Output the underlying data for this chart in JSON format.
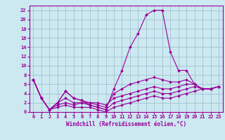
{
  "xlabel": "Windchill (Refroidissement éolien,°C)",
  "bg_color": "#cce8f0",
  "grid_color": "#99bbcc",
  "line_color": "#990099",
  "xlim": [
    -0.5,
    23.5
  ],
  "ylim": [
    0,
    23
  ],
  "xticks": [
    0,
    1,
    2,
    3,
    4,
    5,
    6,
    7,
    8,
    9,
    10,
    11,
    12,
    13,
    14,
    15,
    16,
    17,
    18,
    19,
    20,
    21,
    22,
    23
  ],
  "yticks": [
    0,
    2,
    4,
    6,
    8,
    10,
    12,
    14,
    16,
    18,
    20,
    22
  ],
  "series": [
    [
      7,
      3,
      0.5,
      2,
      4.5,
      3,
      2.5,
      1.5,
      1,
      0.5,
      5,
      9,
      14,
      17,
      21,
      22,
      22,
      13,
      9,
      9,
      6,
      5,
      5,
      5.5
    ],
    [
      7,
      3,
      0.5,
      2,
      4.5,
      3,
      2.5,
      2,
      1.5,
      1,
      4,
      5,
      6,
      6.5,
      7,
      7.5,
      7,
      6.5,
      6.5,
      7,
      6,
      5,
      5,
      5.5
    ],
    [
      7,
      3,
      0.5,
      2,
      3,
      2,
      2,
      2,
      2,
      1.5,
      3,
      3.5,
      4,
      4.5,
      5,
      5.5,
      5,
      5,
      5.5,
      6,
      6,
      5,
      5,
      5.5
    ],
    [
      7,
      3,
      0.5,
      1.5,
      2,
      1.5,
      2,
      1.5,
      1,
      0.5,
      2,
      2.5,
      3,
      3.5,
      4,
      4.5,
      4,
      4,
      4.5,
      5,
      5.5,
      5,
      5,
      5.5
    ],
    [
      7,
      3,
      0.5,
      1,
      1.5,
      1,
      1,
      1,
      0.5,
      0,
      1,
      1.5,
      2,
      2.5,
      3,
      3.5,
      3,
      3,
      3.5,
      4,
      4.5,
      5,
      5,
      5.5
    ]
  ],
  "xlabel_fontsize": 5.5,
  "tick_fontsize": 5,
  "marker_size": 2,
  "line_width": 0.8
}
